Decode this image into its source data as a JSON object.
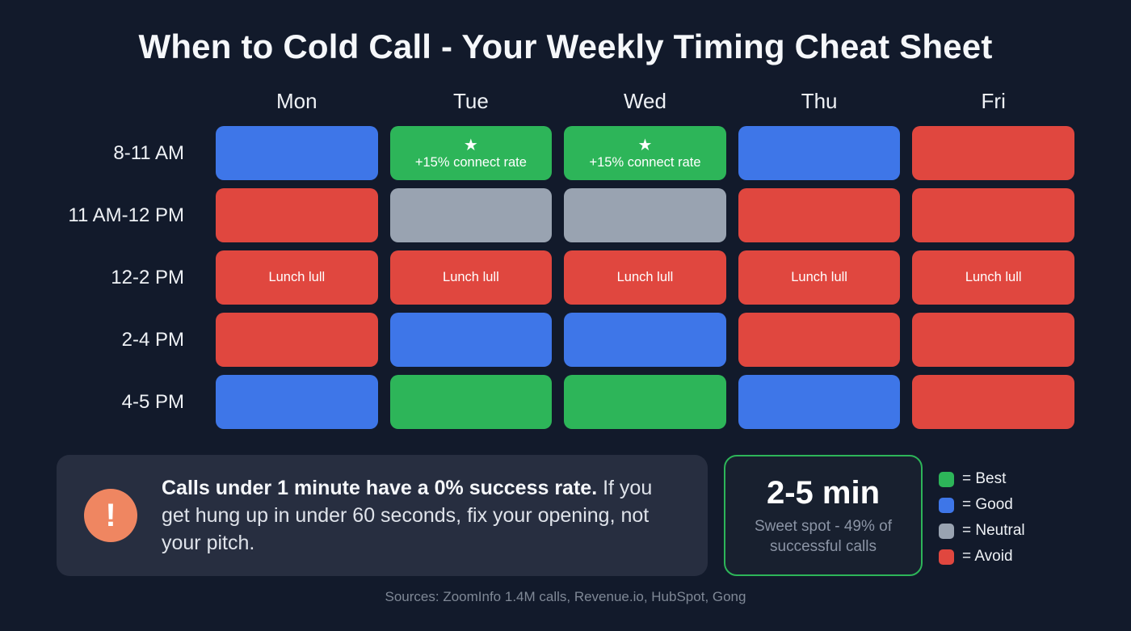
{
  "title": "When to Cold Call - Your Weekly Timing Cheat Sheet",
  "colors": {
    "background": "#121a2b",
    "best": "#2db559",
    "good": "#3e76e8",
    "neutral": "#99a3b1",
    "avoid": "#e0473f",
    "callout_bg": "#272e40",
    "alert_icon": "#ef8661"
  },
  "chart_data": {
    "type": "heatmap",
    "title": "When to Cold Call - Your Weekly Timing Cheat Sheet",
    "columns": [
      "Mon",
      "Tue",
      "Wed",
      "Thu",
      "Fri"
    ],
    "rows": [
      "8-11 AM",
      "11 AM-12 PM",
      "12-2 PM",
      "2-4 PM",
      "4-5 PM"
    ],
    "legend_position": "bottom-right",
    "cells": [
      [
        {
          "status": "good",
          "label": ""
        },
        {
          "status": "best",
          "icon": "star",
          "label": "+15% connect rate"
        },
        {
          "status": "best",
          "icon": "star",
          "label": "+15% connect rate"
        },
        {
          "status": "good",
          "label": ""
        },
        {
          "status": "avoid",
          "label": ""
        }
      ],
      [
        {
          "status": "avoid",
          "label": ""
        },
        {
          "status": "neutral",
          "label": ""
        },
        {
          "status": "neutral",
          "label": ""
        },
        {
          "status": "avoid",
          "label": ""
        },
        {
          "status": "avoid",
          "label": ""
        }
      ],
      [
        {
          "status": "avoid",
          "label": "Lunch lull"
        },
        {
          "status": "avoid",
          "label": "Lunch lull"
        },
        {
          "status": "avoid",
          "label": "Lunch lull"
        },
        {
          "status": "avoid",
          "label": "Lunch lull"
        },
        {
          "status": "avoid",
          "label": "Lunch lull"
        }
      ],
      [
        {
          "status": "avoid",
          "label": ""
        },
        {
          "status": "good",
          "label": ""
        },
        {
          "status": "good",
          "label": ""
        },
        {
          "status": "avoid",
          "label": ""
        },
        {
          "status": "avoid",
          "label": ""
        }
      ],
      [
        {
          "status": "good",
          "label": ""
        },
        {
          "status": "best",
          "label": ""
        },
        {
          "status": "best",
          "label": ""
        },
        {
          "status": "good",
          "label": ""
        },
        {
          "status": "avoid",
          "label": ""
        }
      ]
    ]
  },
  "callout": {
    "icon": "exclamation-icon",
    "icon_glyph": "!",
    "heading": "Calls under 1 minute have a 0% success rate.",
    "body": "If you get hung up in under 60 seconds, fix your opening, not your pitch."
  },
  "sweet_spot": {
    "value": "2-5 min",
    "caption": "Sweet spot - 49% of successful calls"
  },
  "legend": [
    {
      "color": "best",
      "label": "= Best"
    },
    {
      "color": "good",
      "label": "= Good"
    },
    {
      "color": "neutral",
      "label": "= Neutral"
    },
    {
      "color": "avoid",
      "label": "= Avoid"
    }
  ],
  "footer": "Sources: ZoomInfo 1.4M calls, Revenue.io, HubSpot, Gong"
}
